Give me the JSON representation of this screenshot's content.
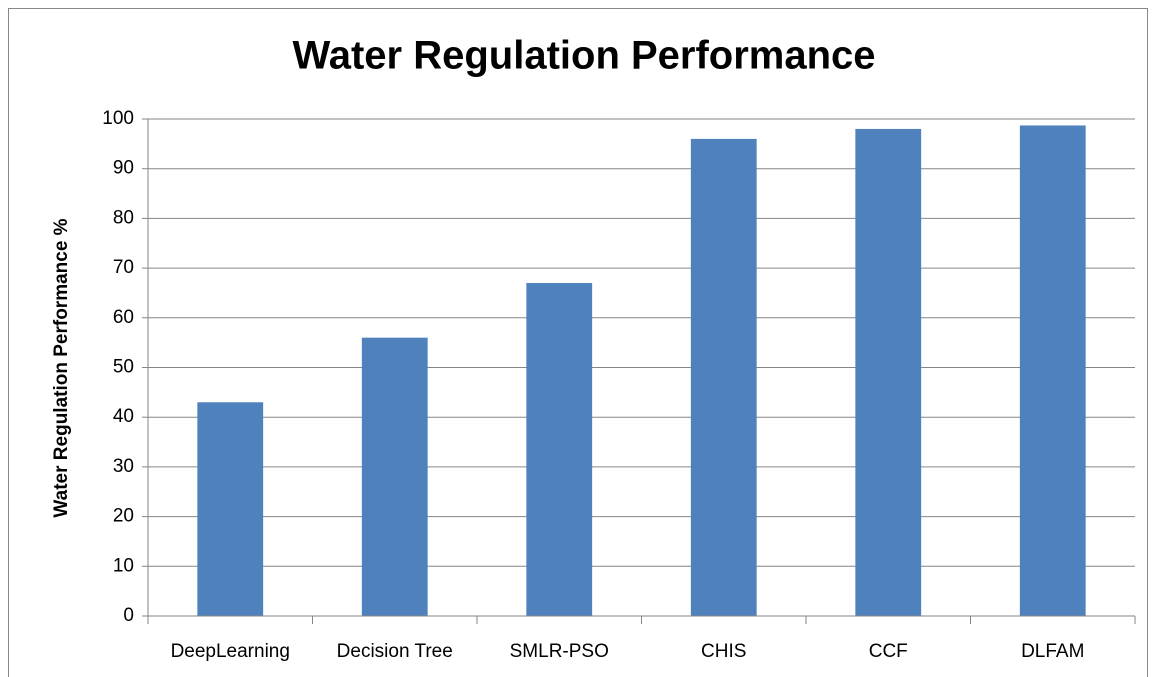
{
  "chart_data": {
    "type": "bar",
    "title": "Water Regulation Performance",
    "y_label": "Water Regulation Performance %",
    "categories": [
      "DeepLearning",
      "Decision Tree",
      "SMLR-PSO",
      "CHIS",
      "CCF",
      "DLFAM"
    ],
    "values": [
      43,
      56,
      67,
      96,
      98,
      98.7
    ],
    "color": "#4f81bd",
    "ylim": [
      0,
      100
    ],
    "yticks": [
      0,
      10,
      20,
      30,
      40,
      50,
      60,
      70,
      80,
      90,
      100
    ],
    "grid": true
  }
}
